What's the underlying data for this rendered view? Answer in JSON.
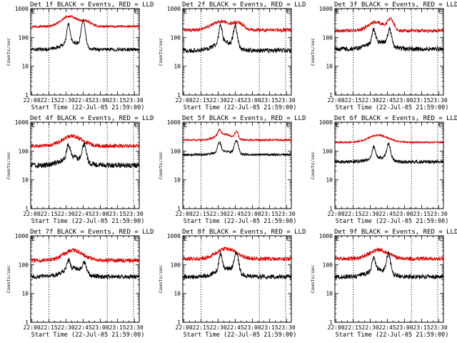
{
  "figure": {
    "colors": {
      "events": "#000000",
      "lld": "#e00000",
      "background": "#ffffff"
    },
    "line_style": {
      "marker_lines": "dotted"
    }
  },
  "chart_data": [
    {
      "type": "line",
      "title": "Det 1f BLACK = Events, RED = LLD",
      "xlabel": "Start Time (22-Jul-05 21:59:00)",
      "ylabel": "Counts/sec",
      "yscale": "log",
      "ylim": [
        1,
        1000
      ],
      "yticks": [
        "1",
        "10",
        "100",
        "1000"
      ],
      "xlim_min": [
        0,
        95
      ],
      "xticks": [
        "22:00",
        "22:15",
        "22:30",
        "22:45",
        "23:00",
        "23:15",
        "23:30"
      ],
      "marker_times_min": [
        16,
        67,
        90
      ],
      "marker_labels": [
        {
          "text": "E",
          "t": 1
        },
        {
          "text": "E",
          "t": 91
        }
      ],
      "series": [
        {
          "name": "RED = LLD",
          "color": "#e00000",
          "base": 240,
          "bumps": [
            {
              "t": 34,
              "w": 10,
              "a": 0.35
            },
            {
              "t": 49,
              "w": 6,
              "a": 0.15
            }
          ],
          "spikes": [],
          "noise": 0.04
        },
        {
          "name": "BLACK = Events",
          "color": "#000000",
          "base": 38,
          "bumps": [
            {
              "t": 36,
              "w": 12,
              "a": 0.25
            }
          ],
          "spikes": [
            {
              "t": 33,
              "w": 2,
              "a": 0.65
            },
            {
              "t": 46,
              "w": 2.5,
              "a": 0.9
            }
          ],
          "noise": 0.06
        }
      ]
    },
    {
      "type": "line",
      "title": "Det 2f BLACK = Events, RED = LLD",
      "xlabel": "Start Time (22-Jul-05 21:59:00)",
      "ylabel": "Counts/sec",
      "yscale": "log",
      "ylim": [
        1,
        1000
      ],
      "yticks": [
        "1",
        "10",
        "100",
        "1000"
      ],
      "xlim_min": [
        0,
        95
      ],
      "xticks": [
        "22:00",
        "22:15",
        "22:30",
        "22:45",
        "23:00",
        "23:15",
        "23:30"
      ],
      "marker_times_min": [
        16,
        67,
        90
      ],
      "marker_labels": [
        {
          "text": "E",
          "t": 1
        },
        {
          "text": "E",
          "t": 91
        }
      ],
      "series": [
        {
          "name": "RED = LLD",
          "color": "#e00000",
          "base": 180,
          "bumps": [
            {
              "t": 34,
              "w": 12,
              "a": 0.3
            },
            {
              "t": 49,
              "w": 6,
              "a": 0.2
            }
          ],
          "spikes": [],
          "noise": 0.06
        },
        {
          "name": "BLACK = Events",
          "color": "#000000",
          "base": 35,
          "bumps": [
            {
              "t": 36,
              "w": 12,
              "a": 0.3
            }
          ],
          "spikes": [
            {
              "t": 33,
              "w": 2,
              "a": 0.6
            },
            {
              "t": 46,
              "w": 2.5,
              "a": 0.7
            }
          ],
          "noise": 0.08
        }
      ]
    },
    {
      "type": "line",
      "title": "Det 3f BLACK = Events, RED = LLD",
      "xlabel": "Start Time (22-Jul-05 21:59:00)",
      "ylabel": "Counts/sec",
      "yscale": "log",
      "ylim": [
        1,
        1000
      ],
      "yticks": [
        "1",
        "10",
        "100",
        "1000"
      ],
      "xlim_min": [
        0,
        95
      ],
      "xticks": [
        "22:00",
        "22:15",
        "22:30",
        "22:45",
        "23:00",
        "23:15",
        "23:30"
      ],
      "marker_times_min": [
        16,
        67,
        90
      ],
      "marker_labels": [
        {
          "text": "E",
          "t": 1
        },
        {
          "text": "E",
          "t": 91
        }
      ],
      "series": [
        {
          "name": "RED = LLD",
          "color": "#e00000",
          "base": 170,
          "bumps": [
            {
              "t": 36,
              "w": 10,
              "a": 0.3
            },
            {
              "t": 49,
              "w": 4,
              "a": 0.35
            }
          ],
          "spikes": [],
          "noise": 0.06
        },
        {
          "name": "BLACK = Events",
          "color": "#000000",
          "base": 40,
          "bumps": [
            {
              "t": 38,
              "w": 12,
              "a": 0.25
            }
          ],
          "spikes": [
            {
              "t": 34,
              "w": 2,
              "a": 0.45
            },
            {
              "t": 48,
              "w": 2.5,
              "a": 0.55
            }
          ],
          "noise": 0.08
        }
      ]
    },
    {
      "type": "line",
      "title": "Det 4f BLACK = Events, RED = LLD",
      "xlabel": "Start Time (22-Jul-05 21:59:00)",
      "ylabel": "Counts/sec",
      "yscale": "log",
      "ylim": [
        1,
        1000
      ],
      "yticks": [
        "1",
        "10",
        "100",
        "1000"
      ],
      "xlim_min": [
        0,
        95
      ],
      "xticks": [
        "22:00",
        "22:15",
        "22:30",
        "22:45",
        "23:00",
        "23:15",
        "23:30"
      ],
      "marker_times_min": [
        16,
        67,
        90
      ],
      "marker_labels": [
        {
          "text": "E",
          "t": 1
        },
        {
          "text": "E",
          "t": 91
        }
      ],
      "series": [
        {
          "name": "RED = LLD",
          "color": "#e00000",
          "base": 150,
          "bumps": [
            {
              "t": 36,
              "w": 12,
              "a": 0.35
            }
          ],
          "spikes": [],
          "noise": 0.07
        },
        {
          "name": "BLACK = Events",
          "color": "#000000",
          "base": 32,
          "bumps": [
            {
              "t": 36,
              "w": 12,
              "a": 0.3
            }
          ],
          "spikes": [
            {
              "t": 33,
              "w": 2,
              "a": 0.45
            },
            {
              "t": 47,
              "w": 2.5,
              "a": 0.6
            }
          ],
          "noise": 0.09
        }
      ]
    },
    {
      "type": "line",
      "title": "Det 5f BLACK = Events, RED = LLD",
      "xlabel": "Start Time (22-Jul-05 21:59:00)",
      "ylabel": "Counts/sec",
      "yscale": "log",
      "ylim": [
        1,
        1000
      ],
      "yticks": [
        "1",
        "10",
        "100",
        "1000"
      ],
      "xlim_min": [
        0,
        95
      ],
      "xticks": [
        "22:00",
        "22:15",
        "22:30",
        "22:45",
        "23:00",
        "23:15",
        "23:30"
      ],
      "marker_times_min": [
        16,
        67,
        90
      ],
      "marker_labels": [
        {
          "text": "E",
          "t": 1
        },
        {
          "text": "E",
          "t": 91
        }
      ],
      "series": [
        {
          "name": "RED = LLD",
          "color": "#e00000",
          "base": 240,
          "bumps": [
            {
              "t": 36,
              "w": 10,
              "a": 0.2
            }
          ],
          "spikes": [
            {
              "t": 32,
              "w": 2,
              "a": 0.2
            },
            {
              "t": 47,
              "w": 2,
              "a": 0.25
            }
          ],
          "noise": 0.03
        },
        {
          "name": "BLACK = Events",
          "color": "#000000",
          "base": 75,
          "bumps": [
            {
              "t": 36,
              "w": 10,
              "a": 0.12
            }
          ],
          "spikes": [
            {
              "t": 32,
              "w": 2,
              "a": 0.35
            },
            {
              "t": 47,
              "w": 2.5,
              "a": 0.45
            }
          ],
          "noise": 0.04
        }
      ]
    },
    {
      "type": "line",
      "title": "Det 6f BLACK = Events, RED = LLD",
      "xlabel": "Start Time (22-Jul-05 21:59:00)",
      "ylabel": "Counts/sec",
      "yscale": "log",
      "ylim": [
        1,
        1000
      ],
      "yticks": [
        "1",
        "10",
        "100",
        "1000"
      ],
      "xlim_min": [
        0,
        95
      ],
      "xticks": [
        "22:00",
        "22:15",
        "22:30",
        "22:45",
        "23:00",
        "23:15",
        "23:30"
      ],
      "marker_times_min": [
        16,
        67,
        90
      ],
      "marker_labels": [
        {
          "text": "E",
          "t": 1
        },
        {
          "text": "E",
          "t": 91
        }
      ],
      "series": [
        {
          "name": "RED = LLD",
          "color": "#e00000",
          "base": 200,
          "bumps": [
            {
              "t": 38,
              "w": 12,
              "a": 0.25
            }
          ],
          "spikes": [],
          "noise": 0.03
        },
        {
          "name": "BLACK = Events",
          "color": "#000000",
          "base": 42,
          "bumps": [
            {
              "t": 38,
              "w": 12,
              "a": 0.15
            }
          ],
          "spikes": [
            {
              "t": 34,
              "w": 2,
              "a": 0.4
            },
            {
              "t": 47,
              "w": 2.5,
              "a": 0.55
            }
          ],
          "noise": 0.06
        }
      ]
    },
    {
      "type": "line",
      "title": "Det 7f BLACK = Events, RED = LLD",
      "xlabel": "Start Time (22-Jul-05 21:59:00)",
      "ylabel": "Counts/sec",
      "yscale": "log",
      "ylim": [
        1,
        1000
      ],
      "yticks": [
        "1",
        "10",
        "100",
        "1000"
      ],
      "xlim_min": [
        0,
        95
      ],
      "xticks": [
        "22:00",
        "22:15",
        "22:30",
        "22:45",
        "23:00",
        "23:15",
        "23:30"
      ],
      "marker_times_min": [
        16,
        67,
        90
      ],
      "marker_labels": [
        {
          "text": "E",
          "t": 1
        },
        {
          "text": "E",
          "t": 91
        }
      ],
      "series": [
        {
          "name": "RED = LLD",
          "color": "#e00000",
          "base": 140,
          "bumps": [
            {
              "t": 37,
              "w": 12,
              "a": 0.35
            }
          ],
          "spikes": [],
          "noise": 0.07
        },
        {
          "name": "BLACK = Events",
          "color": "#000000",
          "base": 38,
          "bumps": [
            {
              "t": 37,
              "w": 12,
              "a": 0.3
            }
          ],
          "spikes": [
            {
              "t": 33,
              "w": 2,
              "a": 0.3
            },
            {
              "t": 47,
              "w": 2.5,
              "a": 0.35
            }
          ],
          "noise": 0.08
        }
      ]
    },
    {
      "type": "line",
      "title": "Det 8f BLACK = Events, RED = LLD",
      "xlabel": "Start Time (22-Jul-05 21:59:00)",
      "ylabel": "Counts/sec",
      "yscale": "log",
      "ylim": [
        1,
        1000
      ],
      "yticks": [
        "1",
        "10",
        "100",
        "1000"
      ],
      "xlim_min": [
        0,
        95
      ],
      "xticks": [
        "22:00",
        "22:15",
        "22:30",
        "22:45",
        "23:00",
        "23:15",
        "23:30"
      ],
      "marker_times_min": [
        16,
        67,
        90
      ],
      "marker_labels": [
        {
          "text": "E",
          "t": 1
        },
        {
          "text": "E",
          "t": 91
        }
      ],
      "series": [
        {
          "name": "RED = LLD",
          "color": "#e00000",
          "base": 160,
          "bumps": [
            {
              "t": 38,
              "w": 12,
              "a": 0.35
            }
          ],
          "spikes": [],
          "noise": 0.07
        },
        {
          "name": "BLACK = Events",
          "color": "#000000",
          "base": 38,
          "bumps": [
            {
              "t": 38,
              "w": 12,
              "a": 0.3
            }
          ],
          "spikes": [
            {
              "t": 33,
              "w": 2,
              "a": 0.55
            },
            {
              "t": 47,
              "w": 2.5,
              "a": 0.7
            }
          ],
          "noise": 0.08
        }
      ]
    },
    {
      "type": "line",
      "title": "Det 9f BLACK = Events, RED = LLD",
      "xlabel": "Start Time (22-Jul-05 21:59:00)",
      "ylabel": "Counts/sec",
      "yscale": "log",
      "ylim": [
        1,
        1000
      ],
      "yticks": [
        "1",
        "10",
        "100",
        "1000"
      ],
      "xlim_min": [
        0,
        95
      ],
      "xticks": [
        "22:00",
        "22:15",
        "22:30",
        "22:45",
        "23:00",
        "23:15",
        "23:30"
      ],
      "marker_times_min": [
        16,
        67,
        90
      ],
      "marker_labels": [
        {
          "text": "E",
          "t": 1
        },
        {
          "text": "E",
          "t": 91
        }
      ],
      "series": [
        {
          "name": "RED = LLD",
          "color": "#e00000",
          "base": 160,
          "bumps": [
            {
              "t": 38,
              "w": 12,
              "a": 0.3
            }
          ],
          "spikes": [],
          "noise": 0.07
        },
        {
          "name": "BLACK = Events",
          "color": "#000000",
          "base": 38,
          "bumps": [
            {
              "t": 38,
              "w": 12,
              "a": 0.25
            }
          ],
          "spikes": [
            {
              "t": 34,
              "w": 2,
              "a": 0.45
            },
            {
              "t": 47,
              "w": 2.5,
              "a": 0.65
            }
          ],
          "noise": 0.08
        }
      ]
    }
  ]
}
